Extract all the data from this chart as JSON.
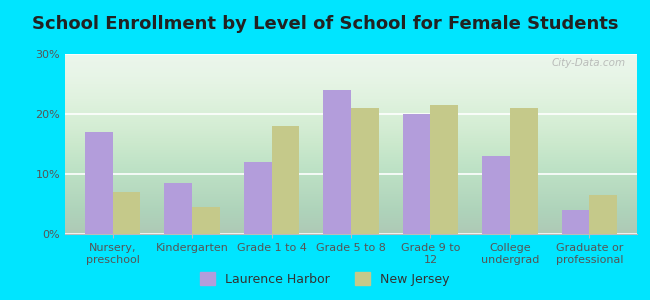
{
  "title": "School Enrollment by Level of School for Female Students",
  "categories": [
    "Nursery,\npreschool",
    "Kindergarten",
    "Grade 1 to 4",
    "Grade 5 to 8",
    "Grade 9 to\n12",
    "College\nundergrad",
    "Graduate or\nprofessional"
  ],
  "laurence_harbor": [
    17.0,
    8.5,
    12.0,
    24.0,
    20.0,
    13.0,
    4.0
  ],
  "new_jersey": [
    7.0,
    4.5,
    18.0,
    21.0,
    21.5,
    21.0,
    6.5
  ],
  "lh_color": "#b39ddb",
  "nj_color": "#c5c98a",
  "bg_outer": "#00e5ff",
  "bg_plot": "#e8f5e9",
  "ylim": [
    0,
    30
  ],
  "yticks": [
    0,
    10,
    20,
    30
  ],
  "ytick_labels": [
    "0%",
    "10%",
    "20%",
    "30%"
  ],
  "legend_lh": "Laurence Harbor",
  "legend_nj": "New Jersey",
  "title_fontsize": 13,
  "axis_fontsize": 8,
  "legend_fontsize": 9,
  "watermark": "City-Data.com"
}
